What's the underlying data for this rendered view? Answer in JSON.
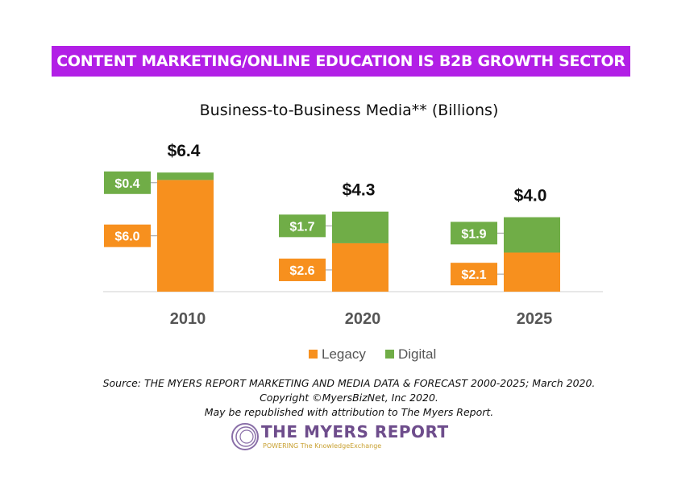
{
  "banner": "CONTENT MARKETING/ONLINE EDUCATION IS B2B GROWTH SECTOR",
  "chart_data": {
    "type": "bar",
    "stacked": true,
    "title": "Business-to-Business Media** (Billions)",
    "categories": [
      "2010",
      "2020",
      "2025"
    ],
    "series": [
      {
        "name": "Legacy",
        "color": "#f7901e",
        "values": [
          6.0,
          2.6,
          2.1
        ],
        "labels": [
          "$6.0",
          "$2.6",
          "$2.1"
        ]
      },
      {
        "name": "Digital",
        "color": "#70ad47",
        "values": [
          0.4,
          1.7,
          1.9
        ],
        "labels": [
          "$0.4",
          "$1.7",
          "$1.9"
        ]
      }
    ],
    "totals": [
      "$6.4",
      "$4.3",
      "$4.0"
    ],
    "legend": "bottom",
    "grid": false,
    "ylim": [
      0,
      6.4
    ]
  },
  "source": {
    "line1": "Source: THE MYERS REPORT MARKETING AND MEDIA DATA & FORECAST 2000-2025; March 2020.",
    "line2": "Copyright ©MyersBizNet, Inc 2020.",
    "line3": "May be republished with attribution to The Myers Report."
  },
  "logo": {
    "name": "THE MYERS REPORT",
    "tagline": "POWERING The KnowledgeExchange"
  }
}
